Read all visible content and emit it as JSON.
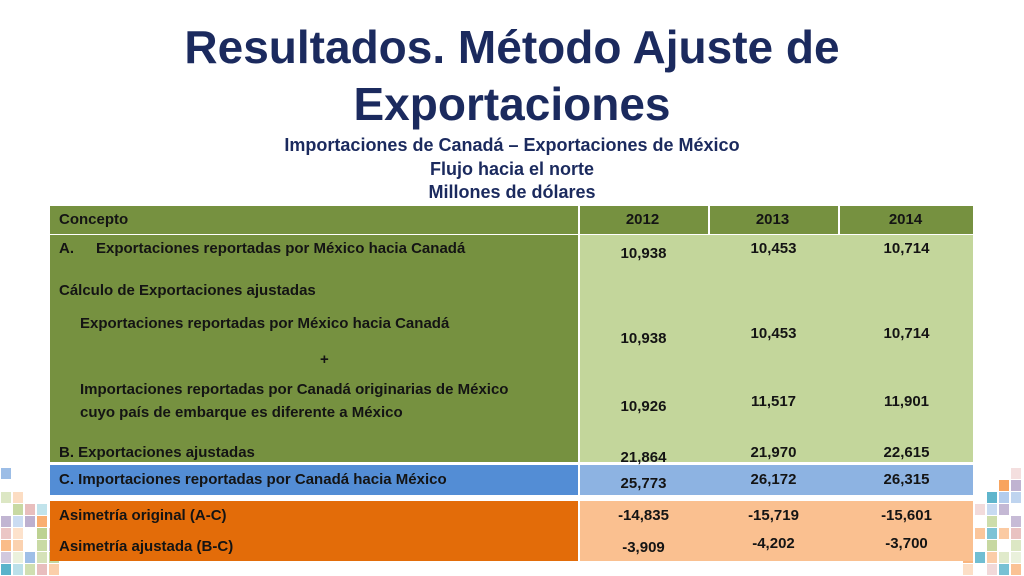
{
  "slide": {
    "title_line1": "Resultados. Método Ajuste de",
    "title_line2": "Exportaciones",
    "subtitle1": "Importaciones de Canadá – Exportaciones de México",
    "subtitle2": "Flujo hacia el norte",
    "subtitle3": "Millones de dólares"
  },
  "table": {
    "headers": [
      "Concepto",
      "2012",
      "2013",
      "2014"
    ],
    "row_a": {
      "prefix": "A.",
      "label": "Exportaciones reportadas por México hacia Canadá",
      "values": [
        "10,938",
        "10,453",
        "10,714"
      ]
    },
    "calc_heading": "Cálculo de Exportaciones ajustadas",
    "calc_exports": {
      "label": "Exportaciones reportadas por México hacia Canadá",
      "values": [
        "10,938",
        "10,453",
        "10,714"
      ]
    },
    "plus": "+",
    "calc_imports": {
      "label_line1": "Importaciones reportadas por Canadá originarias de México",
      "label_line2": "cuyo país de embarque es diferente a México",
      "values": [
        "10,926",
        "11,517",
        "11,901"
      ]
    },
    "row_b": {
      "label": "B. Exportaciones ajustadas",
      "values": [
        "21,864",
        "21,970",
        "22,615"
      ]
    },
    "row_c": {
      "label": "C. Importaciones reportadas por Canadá hacia México",
      "values": [
        "25,773",
        "26,172",
        "26,315"
      ]
    },
    "asym_orig": {
      "label": "Asimetría original (A-C)",
      "values": [
        "-14,835",
        "-15,719",
        "-15,601"
      ]
    },
    "asym_adj": {
      "label": "Asimetría ajustada (B-C)",
      "values": [
        "-3,909",
        "-4,202",
        "-3,700"
      ]
    }
  },
  "colors": {
    "title": "#1b2a5e",
    "green_dark": "#769140",
    "green_light": "#c3d69b",
    "blue_dark": "#538dd5",
    "blue_light": "#8db3e2",
    "orange_dark": "#e36c09",
    "orange_light": "#fac090"
  }
}
